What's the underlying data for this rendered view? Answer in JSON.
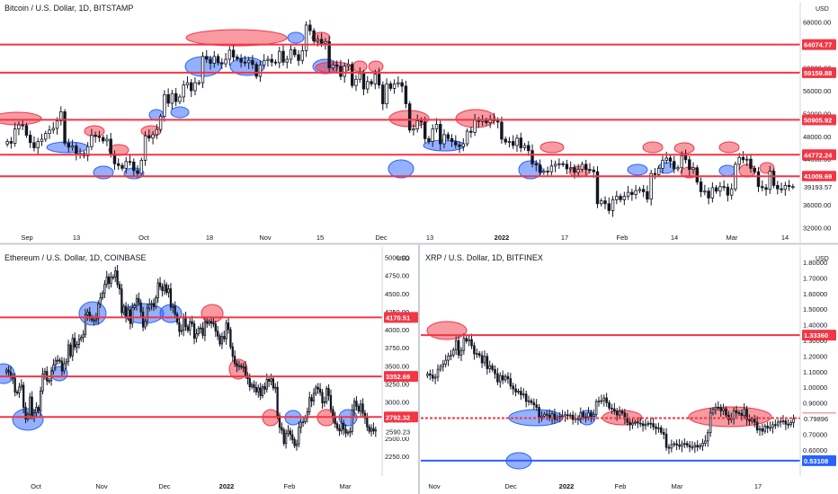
{
  "colors": {
    "up": "#ffffff",
    "down": "#131722",
    "level": "#f23645",
    "support_blue": "#2962ff",
    "red_zone": "#f23645",
    "blue_zone": "#2962ff",
    "grid": "#f0f3fa",
    "axis": "#d1d4dc"
  },
  "chart_data": [
    {
      "id": "btc",
      "type": "candlestick",
      "title": "Bitcoin / U.S. Dollar, 1D, BITSTAMP",
      "currency": "USD",
      "ylim": [
        30500,
        70000
      ],
      "y_ticks": [
        32000,
        36000,
        40000,
        44000,
        48000,
        52000,
        56000,
        60000,
        64000,
        68000
      ],
      "y_tick_labels": [
        "32000.00",
        "36000.00",
        "40000.00",
        "44000.00",
        "48000.00",
        "52000.00",
        "56000.00",
        "60000.00",
        "64000.00",
        "68000.00"
      ],
      "x_ticks": [
        "Sep",
        "13",
        "Oct",
        "18",
        "Nov",
        "15",
        "Dec",
        "13",
        "2022",
        "17",
        "Feb",
        "14",
        "Mar",
        "14"
      ],
      "x_tick_bold": [
        false,
        false,
        false,
        false,
        false,
        false,
        false,
        false,
        true,
        false,
        false,
        false,
        false,
        false
      ],
      "levels": [
        {
          "value": 64074.77,
          "label": "64074.77",
          "color": "#f23645"
        },
        {
          "value": 59159.88,
          "label": "59159.88",
          "color": "#f23645"
        },
        {
          "value": 50905.92,
          "label": "50905.92",
          "color": "#f23645"
        },
        {
          "value": 44772.24,
          "label": "44772.24",
          "color": "#f23645"
        },
        {
          "value": 41009.69,
          "label": "41009.69",
          "color": "#f23645"
        }
      ],
      "last_price": {
        "value": 39193.57,
        "label": "39193.57"
      },
      "series": [
        {
          "name": "BTCUSD",
          "close": [
            47100,
            46800,
            49300,
            50000,
            49900,
            48200,
            46900,
            46000,
            47100,
            47500,
            48500,
            49100,
            49400,
            50700,
            52300,
            46800,
            46100,
            46300,
            44900,
            45000,
            44600,
            46200,
            48200,
            48000,
            47800,
            47200,
            47500,
            44900,
            43200,
            42900,
            42400,
            43600,
            43500,
            42000,
            41500,
            43800,
            48100,
            47700,
            48300,
            49200,
            51500,
            55300,
            53800,
            55500,
            54100,
            54900,
            57000,
            57400,
            56000,
            57400,
            57400,
            62000,
            61500,
            60800,
            62000,
            60900,
            60700,
            61500,
            63100,
            61900,
            61600,
            61000,
            60900,
            61300,
            60600,
            58500,
            60500,
            61300,
            61500,
            61000,
            60900,
            62900,
            61000,
            61500,
            63200,
            62300,
            61300,
            63000,
            67500,
            66500,
            64700,
            65000,
            64300,
            64600,
            60000,
            60500,
            60300,
            58500,
            60300,
            60600,
            56900,
            58000,
            59000,
            56300,
            57600,
            57200,
            58900,
            57000,
            53700,
            57200,
            56400,
            57200,
            57400,
            56800,
            53700,
            49100,
            49300,
            50700,
            50500,
            47600,
            47100,
            49300,
            50100,
            46700,
            48300,
            47600,
            47100,
            46500,
            46200,
            46700,
            48900,
            48700,
            50800,
            50600,
            50800,
            50400,
            51000,
            50700,
            50500,
            47500,
            47000,
            47100,
            46400,
            47700,
            46000,
            46400,
            45500,
            43200,
            43000,
            41700,
            41900,
            41800,
            42800,
            43100,
            43200,
            43100,
            42300,
            42500,
            41700,
            42200,
            43100,
            42200,
            42100,
            41800,
            36200,
            36700,
            36200,
            35000,
            36900,
            37500,
            36900,
            37500,
            38200,
            37800,
            38500,
            38700,
            38300,
            37000,
            41500,
            41300,
            42400,
            43800,
            44200,
            43600,
            42300,
            42500,
            44600,
            43900,
            42200,
            42500,
            40000,
            38300,
            38400,
            37200,
            39000,
            38400,
            39200,
            39100,
            37700,
            38800,
            43100,
            44300,
            43900,
            44000,
            42400,
            41800,
            39200,
            39000,
            38700,
            41900,
            39400,
            38800,
            38700,
            39400,
            39200,
            39200
          ]
        }
      ]
    },
    {
      "id": "eth",
      "type": "candlestick",
      "title": "Ethereum / U.S. Dollar, 1D, COINBASE",
      "currency": "USD",
      "ylim": [
        2100,
        5020
      ],
      "y_ticks": [
        2250,
        2500,
        2750,
        3000,
        3250,
        3500,
        3750,
        4000,
        4250,
        4500,
        4750,
        5000
      ],
      "y_tick_labels": [
        "2250.00",
        "2500.00",
        "2750.00",
        "3000.00",
        "3250.00",
        "3500.00",
        "3750.00",
        "4000.00",
        "4250.00",
        "4500.00",
        "4750.00",
        "5000.00"
      ],
      "x_ticks": [
        "Oct",
        "Nov",
        "Dec",
        "2022",
        "Feb",
        "Mar"
      ],
      "x_tick_bold": [
        false,
        false,
        false,
        true,
        false,
        false
      ],
      "levels": [
        {
          "value": 4170.51,
          "label": "4170.51",
          "color": "#f23645"
        },
        {
          "value": 3352.69,
          "label": "3352.69",
          "color": "#f23645"
        },
        {
          "value": 2792.32,
          "label": "2792.32",
          "color": "#f23645"
        }
      ],
      "last_price": {
        "value": 2590.23,
        "label": "2590.23"
      },
      "series": [
        {
          "name": "ETHUSD",
          "close": [
            3441,
            3414,
            3356,
            3330,
            3137,
            3126,
            3207,
            3232,
            2927,
            2764,
            2829,
            3068,
            2802,
            2852,
            2926,
            2877,
            3153,
            3389,
            3423,
            3291,
            3295,
            3428,
            3515,
            3575,
            3579,
            3565,
            3429,
            3530,
            3557,
            3790,
            3638,
            3881,
            3760,
            3795,
            3867,
            3895,
            3936,
            4206,
            4245,
            4176,
            4135,
            4127,
            4151,
            4358,
            4444,
            4506,
            4626,
            4732,
            4641,
            4725,
            4730,
            4814,
            4626,
            4565,
            4235,
            4325,
            4169,
            4274,
            4086,
            4305,
            4335,
            4433,
            4373,
            4245,
            4037,
            4116,
            4299,
            4351,
            4363,
            4319,
            4442,
            4648,
            4596,
            4541,
            4621,
            4514,
            4566,
            4312,
            4323,
            4214,
            4103,
            3975,
            3991,
            4179,
            4041,
            3991,
            4111,
            4084,
            3881,
            3943,
            4017,
            4024,
            3923,
            4110,
            4086,
            4113,
            4091,
            4080,
            3981,
            3913,
            3803,
            3906,
            3874,
            4093,
            4003,
            3763,
            3632,
            3530,
            3496,
            3502,
            3484,
            3484,
            3369,
            3324,
            3210,
            3241,
            3201,
            3140,
            3195,
            3086,
            3212,
            3177,
            3312,
            3288,
            3320,
            3194,
            3203,
            2808,
            2648,
            2612,
            2426,
            2564,
            2599,
            2548,
            2481,
            2396,
            2420,
            2649,
            2715,
            2727,
            2784,
            2864,
            3060,
            3012,
            3120,
            3204,
            3180,
            3132,
            2989,
            3004,
            3187,
            3089,
            2897,
            2797,
            2699,
            2633,
            2600,
            2707,
            2622,
            2569,
            2583,
            2592,
            2888,
            3011,
            2941,
            2873,
            2972,
            2845,
            2779,
            2656,
            2595,
            2634,
            2599,
            2614
          ]
        }
      ]
    },
    {
      "id": "xrp",
      "type": "candlestick",
      "title": "XRP / U.S. Dollar, 1D, BITFINEX",
      "currency": "USD",
      "ylim": [
        0.49,
        1.84
      ],
      "y_ticks": [
        0.5,
        0.6,
        0.7,
        0.8,
        0.9,
        1.0,
        1.1,
        1.2,
        1.3,
        1.4,
        1.5,
        1.6,
        1.7,
        1.8
      ],
      "y_tick_labels": [
        "",
        "0.60000",
        "0.70000",
        "",
        "0.90000",
        "1.00000",
        "1.10000",
        "1.20000",
        "1.30000",
        "1.40000",
        "1.50000",
        "1.60000",
        "1.70000",
        "1.80000"
      ],
      "x_ticks": [
        "Nov",
        "Dec",
        "2022",
        "Feb",
        "Mar",
        "17"
      ],
      "x_tick_bold": [
        false,
        false,
        true,
        false,
        false,
        false
      ],
      "levels": [
        {
          "value": 1.3336,
          "label": "1.33360",
          "color": "#f23645"
        },
        {
          "value": 0.8033,
          "label": "0.80330",
          "color": "#f23645",
          "dashed": true
        },
        {
          "value": 0.53108,
          "label": "0.53108",
          "color": "#2962ff"
        }
      ],
      "last_price": {
        "value": 0.79896,
        "label": "0.79896"
      },
      "series": [
        {
          "name": "XRPUSD",
          "close": [
            1.086,
            1.078,
            1.058,
            1.065,
            1.115,
            1.133,
            1.148,
            1.173,
            1.2,
            1.207,
            1.239,
            1.299,
            1.206,
            1.236,
            1.313,
            1.296,
            1.305,
            1.266,
            1.214,
            1.216,
            1.204,
            1.156,
            1.198,
            1.119,
            1.138,
            1.114,
            1.087,
            1.035,
            1.075,
            1.047,
            1.07,
            1.055,
            1.008,
            0.99,
            0.97,
            0.975,
            0.952,
            0.957,
            0.91,
            0.914,
            0.902,
            0.888,
            0.872,
            0.807,
            0.816,
            0.828,
            0.823,
            0.805,
            0.831,
            0.795,
            0.808,
            0.814,
            0.817,
            0.825,
            0.818,
            0.822,
            0.794,
            0.8,
            0.797,
            0.839,
            0.807,
            0.811,
            0.836,
            0.814,
            0.827,
            0.909,
            0.913,
            0.915,
            0.932,
            0.902,
            0.867,
            0.862,
            0.847,
            0.823,
            0.846,
            0.836,
            0.797,
            0.776,
            0.76,
            0.771,
            0.777,
            0.771,
            0.767,
            0.755,
            0.764,
            0.77,
            0.768,
            0.747,
            0.736,
            0.741,
            0.712,
            0.7,
            0.616,
            0.611,
            0.633,
            0.639,
            0.631,
            0.623,
            0.638,
            0.641,
            0.629,
            0.618,
            0.618,
            0.629,
            0.618,
            0.626,
            0.643,
            0.657,
            0.71,
            0.836,
            0.858,
            0.873,
            0.871,
            0.85,
            0.863,
            0.822,
            0.793,
            0.8,
            0.85,
            0.838,
            0.832,
            0.819,
            0.86,
            0.794,
            0.784,
            0.796,
            0.777,
            0.727,
            0.735,
            0.719,
            0.752,
            0.74,
            0.743,
            0.761,
            0.76,
            0.777,
            0.783,
            0.785,
            0.764,
            0.762,
            0.775,
            0.799
          ]
        }
      ]
    }
  ]
}
